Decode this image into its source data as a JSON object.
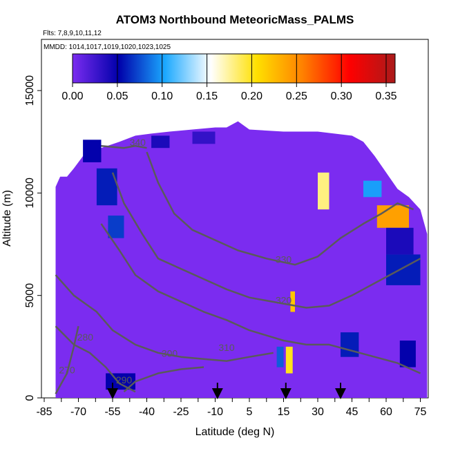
{
  "chart_data": {
    "type": "heatmap",
    "title": "ATOM3 Northbound MeteoricMass_PALMS",
    "subtitle_lines": [
      "Flts: 7,8,9,10,11,12",
      "MMDD: 1014,1017,1019,1020,1023,1025"
    ],
    "xlabel": "Latitude (deg N)",
    "ylabel": "Altitude (m)",
    "xlim": [
      -85,
      82
    ],
    "ylim": [
      0,
      17500
    ],
    "x_ticks": [
      -85,
      -70,
      -55,
      -40,
      -25,
      -10,
      5,
      15,
      30,
      45,
      60,
      75
    ],
    "y_ticks": [
      0,
      5000,
      10000,
      15000
    ],
    "colorbar": {
      "range": [
        0,
        0.36
      ],
      "ticks": [
        0.0,
        0.05,
        0.1,
        0.15,
        0.2,
        0.25,
        0.3,
        0.35
      ],
      "tick_labels": [
        "0.00",
        "0.05",
        "0.10",
        "0.15",
        "0.20",
        "0.25",
        "0.30",
        "0.35"
      ],
      "colors": [
        "#7b2cf0",
        "#0000aa",
        "#1aa8ff",
        "#ffffff",
        "#ffe000",
        "#ff8000",
        "#ff0000",
        "#aa1a1a"
      ]
    },
    "background_value": 0.0,
    "background_color": "#7b2cf0",
    "domain_outline": [
      [
        -80,
        0
      ],
      [
        -80,
        10300
      ],
      [
        -78,
        10800
      ],
      [
        -75,
        10800
      ],
      [
        -72,
        11200
      ],
      [
        -68,
        11800
      ],
      [
        -60,
        12200
      ],
      [
        -52,
        12500
      ],
      [
        -45,
        12800
      ],
      [
        -38,
        12900
      ],
      [
        -30,
        13000
      ],
      [
        -20,
        13100
      ],
      [
        -10,
        13200
      ],
      [
        -5,
        13200
      ],
      [
        0,
        13500
      ],
      [
        5,
        13100
      ],
      [
        15,
        13000
      ],
      [
        30,
        13000
      ],
      [
        45,
        12800
      ],
      [
        50,
        12500
      ],
      [
        55,
        11800
      ],
      [
        60,
        11000
      ],
      [
        65,
        10200
      ],
      [
        70,
        9800
      ],
      [
        75,
        9200
      ],
      [
        78,
        8000
      ],
      [
        78,
        0
      ]
    ],
    "features": [
      {
        "lat": [
          -68,
          -60
        ],
        "alt": [
          11500,
          12600
        ],
        "value": 0.05
      },
      {
        "lat": [
          -62,
          -53
        ],
        "alt": [
          9400,
          11200
        ],
        "value": 0.06
      },
      {
        "lat": [
          -57,
          -50
        ],
        "alt": [
          7800,
          8900
        ],
        "value": 0.07
      },
      {
        "lat": [
          -58,
          -45
        ],
        "alt": [
          400,
          1200
        ],
        "value": 0.05
      },
      {
        "lat": [
          -38,
          -30
        ],
        "alt": [
          12200,
          12800
        ],
        "value": 0.04
      },
      {
        "lat": [
          -20,
          -10
        ],
        "alt": [
          12400,
          13000
        ],
        "value": 0.03
      },
      {
        "lat": [
          13,
          15
        ],
        "alt": [
          1500,
          2500
        ],
        "value": 0.08
      },
      {
        "lat": [
          16,
          19
        ],
        "alt": [
          1200,
          2500
        ],
        "value": 0.2
      },
      {
        "lat": [
          18,
          20
        ],
        "alt": [
          4200,
          5200
        ],
        "value": 0.22
      },
      {
        "lat": [
          30,
          35
        ],
        "alt": [
          9200,
          11000
        ],
        "value": 0.18
      },
      {
        "lat": [
          40,
          48
        ],
        "alt": [
          2000,
          3200
        ],
        "value": 0.06
      },
      {
        "lat": [
          50,
          58
        ],
        "alt": [
          9800,
          10600
        ],
        "value": 0.1
      },
      {
        "lat": [
          56,
          70
        ],
        "alt": [
          8300,
          9400
        ],
        "value": 0.24
      },
      {
        "lat": [
          60,
          72
        ],
        "alt": [
          7000,
          8300
        ],
        "value": 0.04
      },
      {
        "lat": [
          60,
          75
        ],
        "alt": [
          5500,
          7000
        ],
        "value": 0.06
      },
      {
        "lat": [
          66,
          73
        ],
        "alt": [
          1500,
          2800
        ],
        "value": 0.05
      }
    ],
    "theta_contours": [
      {
        "label": "270",
        "label_at": [
          -75,
          1200
        ],
        "points": [
          [
            -80,
            200
          ],
          [
            -75,
            1200
          ],
          [
            -72,
            2500
          ],
          [
            -70,
            3500
          ]
        ]
      },
      {
        "label": "280",
        "label_at": [
          -67,
          2800
        ],
        "points": [
          [
            -80,
            3500
          ],
          [
            -72,
            2600
          ],
          [
            -65,
            2200
          ],
          [
            -58,
            1500
          ],
          [
            -52,
            700
          ],
          [
            -45,
            300
          ]
        ]
      },
      {
        "label": "290",
        "label_at": [
          -50,
          700
        ],
        "points": [
          [
            -50,
            300
          ],
          [
            -45,
            800
          ],
          [
            -35,
            1200
          ],
          [
            -25,
            1400
          ],
          [
            -15,
            1500
          ]
        ]
      },
      {
        "label": "300",
        "label_at": [
          -30,
          2000
        ],
        "points": [
          [
            -80,
            6000
          ],
          [
            -72,
            5000
          ],
          [
            -62,
            4200
          ],
          [
            -55,
            3300
          ],
          [
            -45,
            2600
          ],
          [
            -35,
            2200
          ],
          [
            -25,
            2000
          ],
          [
            -15,
            1900
          ],
          [
            -5,
            1800
          ],
          [
            5,
            2000
          ],
          [
            12,
            2200
          ]
        ]
      },
      {
        "label": "310",
        "label_at": [
          -5,
          2300
        ],
        "points": [
          [
            -60,
            8500
          ],
          [
            -52,
            7200
          ],
          [
            -45,
            6000
          ],
          [
            -35,
            5200
          ],
          [
            -25,
            4700
          ],
          [
            -15,
            4200
          ],
          [
            -5,
            3800
          ],
          [
            5,
            3300
          ],
          [
            15,
            2800
          ],
          [
            25,
            2600
          ],
          [
            35,
            2600
          ],
          [
            45,
            2300
          ],
          [
            55,
            2000
          ],
          [
            65,
            1700
          ],
          [
            75,
            1200
          ]
        ]
      },
      {
        "label": "320",
        "label_at": [
          15,
          4600
        ],
        "points": [
          [
            -55,
            11000
          ],
          [
            -50,
            9500
          ],
          [
            -42,
            8000
          ],
          [
            -35,
            6800
          ],
          [
            -25,
            6300
          ],
          [
            -15,
            5800
          ],
          [
            -5,
            5300
          ],
          [
            5,
            4900
          ],
          [
            15,
            4600
          ],
          [
            25,
            4400
          ],
          [
            35,
            4500
          ],
          [
            45,
            5000
          ],
          [
            55,
            5600
          ],
          [
            65,
            6200
          ],
          [
            75,
            6800
          ]
        ]
      },
      {
        "label": "330",
        "label_at": [
          15,
          6600
        ],
        "points": [
          [
            -40,
            12000
          ],
          [
            -35,
            10500
          ],
          [
            -28,
            9000
          ],
          [
            -20,
            8200
          ],
          [
            -10,
            7700
          ],
          [
            0,
            7200
          ],
          [
            10,
            6800
          ],
          [
            20,
            6500
          ],
          [
            30,
            6900
          ],
          [
            40,
            7800
          ],
          [
            50,
            8500
          ],
          [
            58,
            9000
          ],
          [
            65,
            9500
          ],
          [
            72,
            9200
          ]
        ]
      },
      {
        "label": "340",
        "label_at": [
          -44,
          12300
        ],
        "points": [
          [
            -60,
            12300
          ],
          [
            -50,
            12200
          ],
          [
            -45,
            12300
          ],
          [
            -40,
            12200
          ]
        ]
      }
    ],
    "flight_arrows": [
      -55,
      -9,
      16,
      40
    ]
  }
}
